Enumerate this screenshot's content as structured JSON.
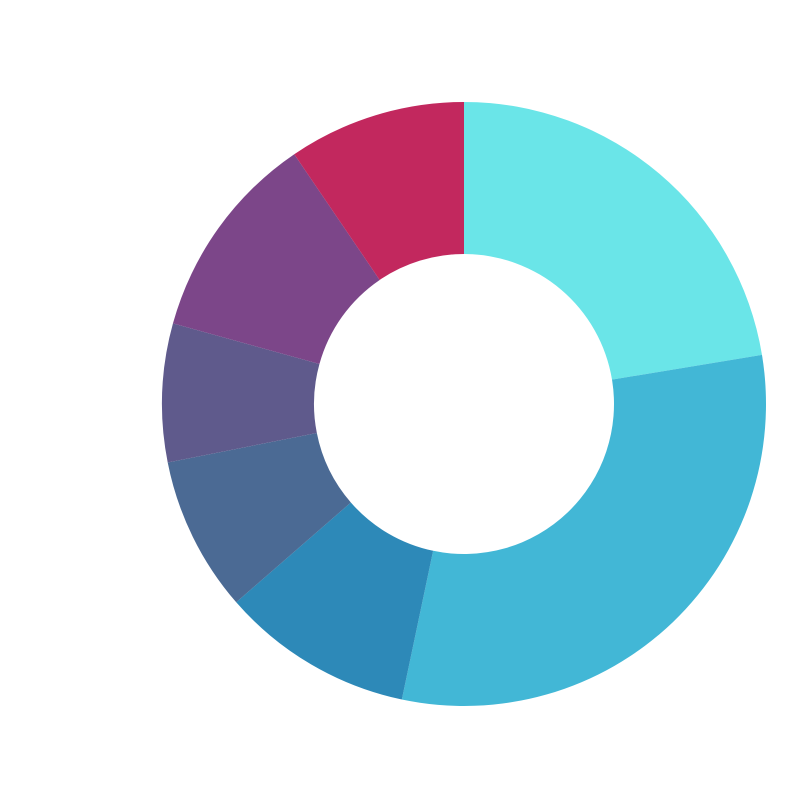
{
  "chart_data": {
    "type": "pie",
    "variant": "donut",
    "title": "",
    "legend": "none",
    "start_angle_deg": 0,
    "direction": "clockwise",
    "slices": [
      {
        "value": 22.4,
        "color": "#6ae5e8"
      },
      {
        "value": 30.9,
        "color": "#42b7d6"
      },
      {
        "value": 10.3,
        "color": "#2d89b8"
      },
      {
        "value": 8.3,
        "color": "#4b6a94"
      },
      {
        "value": 7.4,
        "color": "#5f5a8c"
      },
      {
        "value": 11.2,
        "color": "#7c4689"
      },
      {
        "value": 9.5,
        "color": "#c2285e"
      }
    ]
  }
}
